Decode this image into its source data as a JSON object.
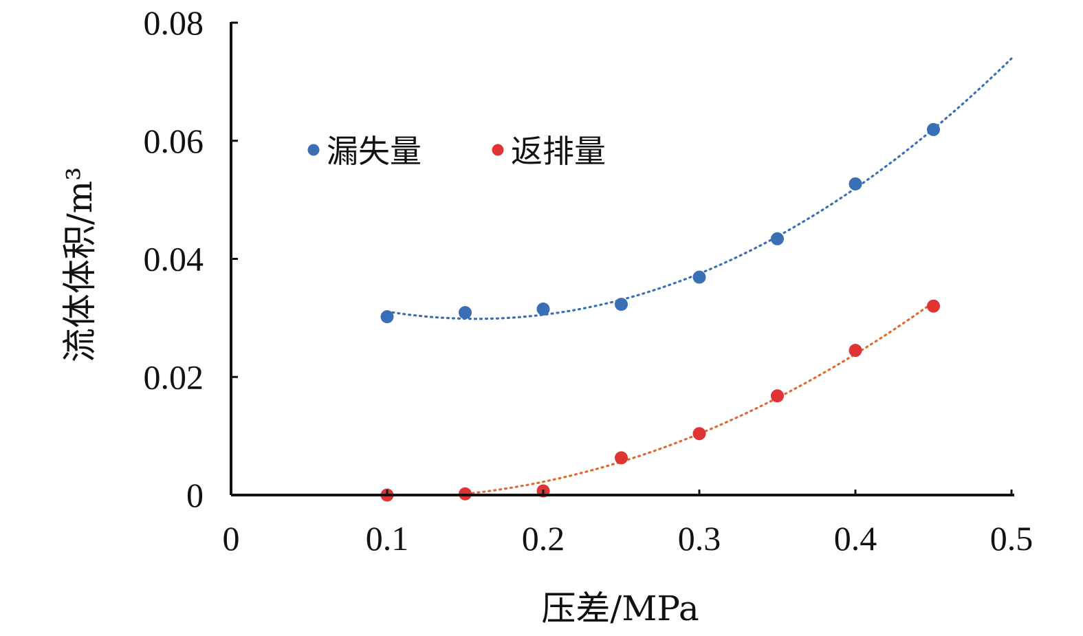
{
  "chart_data": {
    "type": "scatter",
    "xlabel": "压差/MPa",
    "ylabel": "流体体积/m³",
    "xlim": [
      0,
      0.5
    ],
    "ylim": [
      0,
      0.08
    ],
    "xticks": [
      "0",
      "0.1",
      "0.2",
      "0.3",
      "0.4",
      "0.5"
    ],
    "yticks": [
      "0",
      "0.02",
      "0.04",
      "0.06",
      "0.08"
    ],
    "grid": false,
    "legend_position": "upper-left",
    "series": [
      {
        "name": "漏失量",
        "color": "#3a6fb5",
        "x": [
          0.1,
          0.15,
          0.2,
          0.25,
          0.3,
          0.35,
          0.4,
          0.45
        ],
        "y": [
          0.0302,
          0.0309,
          0.0315,
          0.0323,
          0.0369,
          0.0434,
          0.0527,
          0.0619
        ],
        "trendline": {
          "type": "polynomial",
          "x_range": [
            0.1,
            0.5
          ],
          "y_range": [
            0.031,
            0.0736
          ]
        }
      },
      {
        "name": "返排量",
        "color": "#e03333",
        "x": [
          0.1,
          0.15,
          0.2,
          0.25,
          0.3,
          0.35,
          0.4,
          0.45
        ],
        "y": [
          0.0,
          0.0002,
          0.0007,
          0.0063,
          0.0104,
          0.0168,
          0.0245,
          0.032
        ],
        "trendline": {
          "type": "polynomial",
          "x_range": [
            0.13,
            0.45
          ],
          "y_range": [
            0.0,
            0.0373
          ],
          "color": "#e06a2e"
        }
      }
    ]
  }
}
